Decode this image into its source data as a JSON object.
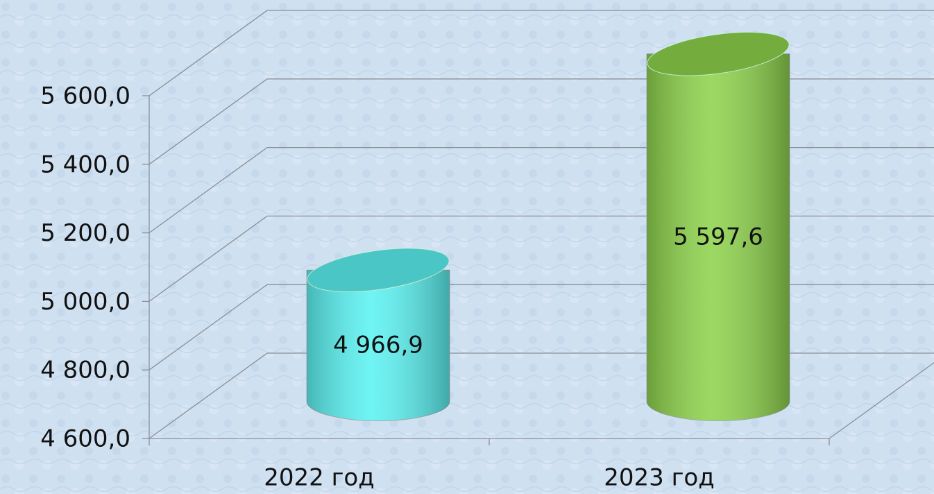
{
  "chart_data": {
    "type": "cylinder3d",
    "categories": [
      "2022 год",
      "2023 год"
    ],
    "values": [
      4966.9,
      5597.6
    ],
    "value_labels": [
      "4 966,9",
      "5 597,6"
    ],
    "colors": [
      "#5cf2f2",
      "#8ed34c"
    ],
    "ylim": [
      4600,
      5600
    ],
    "yticks": [
      {
        "value": 4600,
        "label": "4 600,0"
      },
      {
        "value": 4800,
        "label": "4 800,0"
      },
      {
        "value": 5000,
        "label": "5 000,0"
      },
      {
        "value": 5200,
        "label": "5 200,0"
      },
      {
        "value": 5400,
        "label": "5 400,0"
      },
      {
        "value": 5600,
        "label": "5 600,0"
      }
    ],
    "grid": true
  }
}
